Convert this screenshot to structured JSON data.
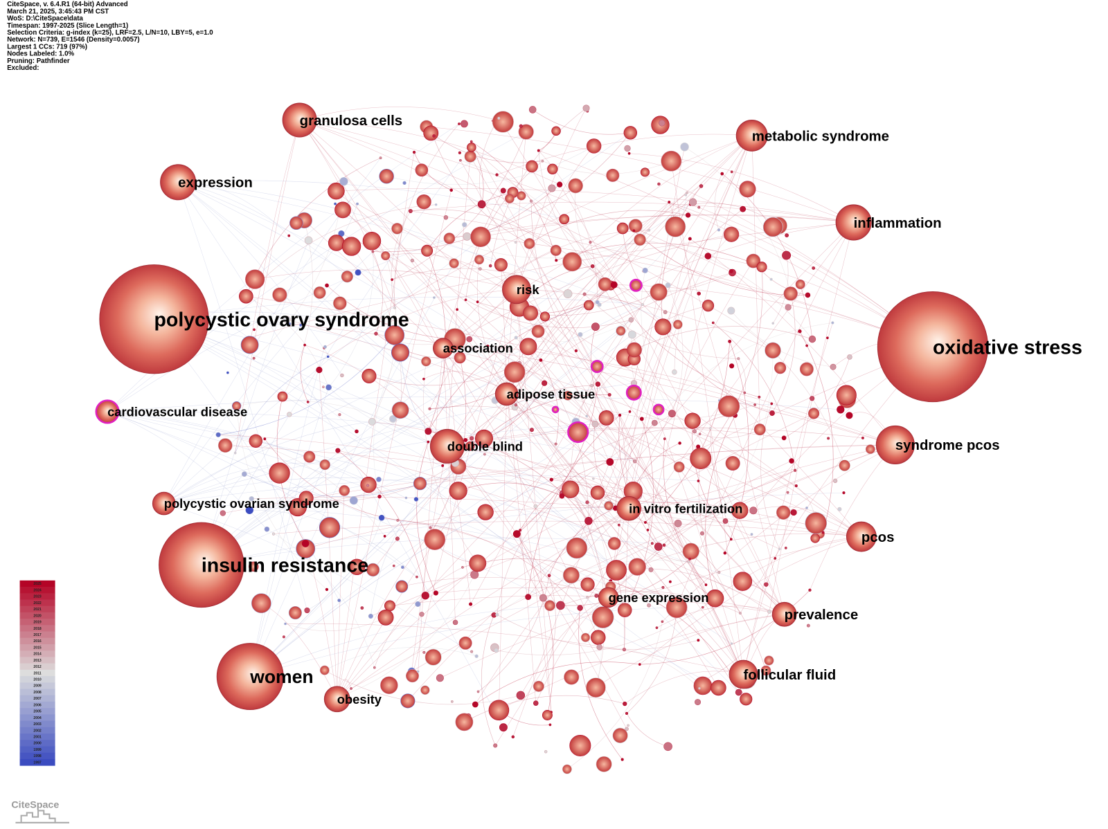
{
  "header": {
    "lines": [
      "CiteSpace, v. 6.4.R1 (64-bit) Advanced",
      "March 21, 2025, 3:45:43 PM CST",
      "WoS: D:\\CiteSpace\\data",
      "Timespan: 1997-2025 (Slice Length=1)",
      "Selection Criteria: g-index (k=25), LRF=2.5, L/N=10, LBY=5, e=1.0",
      "Network: N=739, E=1546 (Density=0.0057)",
      "Largest 1 CCs: 719 (97%)",
      "Nodes Labeled: 1.0%",
      "Pruning: Pathfinder",
      "Excluded:"
    ]
  },
  "nodes": [
    {
      "label": "polycystic ovary syndrome"
    },
    {
      "label": "oxidative stress"
    },
    {
      "label": "insulin resistance"
    },
    {
      "label": "women"
    },
    {
      "label": "granulosa cells"
    },
    {
      "label": "expression"
    },
    {
      "label": "metabolic syndrome"
    },
    {
      "label": "inflammation"
    },
    {
      "label": "syndrome pcos"
    },
    {
      "label": "pcos"
    },
    {
      "label": "prevalence"
    },
    {
      "label": "follicular fluid"
    },
    {
      "label": "obesity"
    },
    {
      "label": "cardiovascular disease"
    },
    {
      "label": "polycystic ovarian syndrome"
    },
    {
      "label": "risk"
    },
    {
      "label": "association"
    },
    {
      "label": "adipose tissue"
    },
    {
      "label": "double blind"
    },
    {
      "label": "in vitro fertilization"
    },
    {
      "label": "gene expression"
    }
  ],
  "legend": {
    "years": [
      "2025",
      "2024",
      "2023",
      "2022",
      "2021",
      "2020",
      "2019",
      "2018",
      "2017",
      "2016",
      "2015",
      "2014",
      "2013",
      "2012",
      "2011",
      "2010",
      "2009",
      "2008",
      "2007",
      "2006",
      "2005",
      "2004",
      "2003",
      "2002",
      "2001",
      "2000",
      "1999",
      "1998",
      "1997"
    ]
  },
  "logo": "CiteSpace"
}
